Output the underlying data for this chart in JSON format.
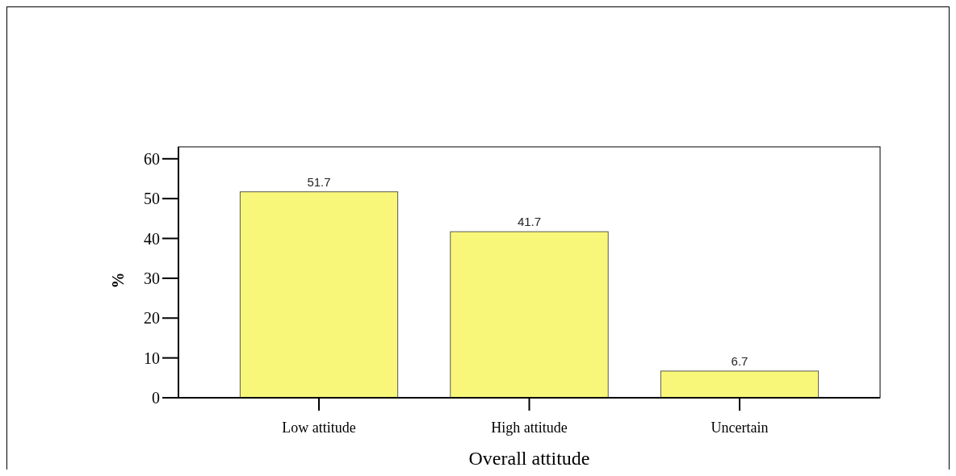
{
  "chart_data": {
    "type": "bar",
    "xlabel": "Overall attitude",
    "ylabel": "%",
    "categories": [
      "Low attitude",
      "High attitude",
      "Uncertain"
    ],
    "values": [
      51.7,
      41.7,
      6.7
    ],
    "color": "#f9f77a",
    "data_labels": true,
    "ylim": [
      0,
      63
    ],
    "yticks": [
      0,
      10,
      20,
      30,
      40,
      50,
      60
    ],
    "grid": false
  }
}
